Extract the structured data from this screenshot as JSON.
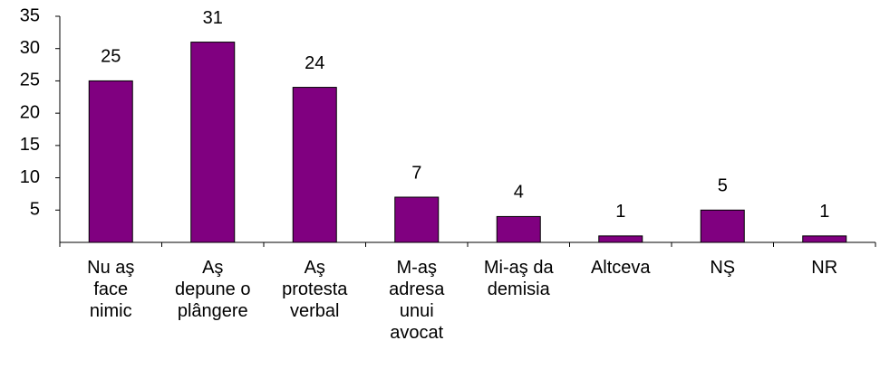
{
  "chart_data": {
    "type": "bar",
    "categories": [
      "Nu aş\nface\nnimic",
      "Aş\ndepune o\nplângere",
      "Aş\nprotesta\nverbal",
      "M-aş\nadresa\nunui\navocat",
      "Mi-aş da\ndemisia",
      "Altceva",
      "NŞ",
      "NR"
    ],
    "values": [
      25,
      31,
      24,
      7,
      4,
      1,
      5,
      1
    ],
    "color": "#800080",
    "ylim": [
      0,
      35
    ],
    "yticks": [
      5,
      10,
      15,
      20,
      25,
      30,
      35
    ],
    "grid": false
  }
}
